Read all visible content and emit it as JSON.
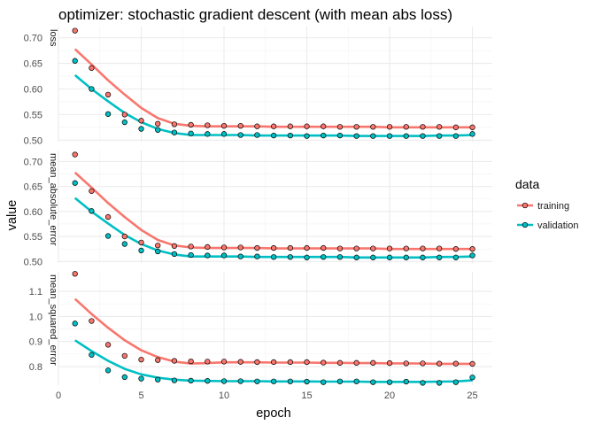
{
  "chart_data": {
    "type": "scatter",
    "title": "optimizer: stochastic gradient descent (with mean abs loss)",
    "xlabel": "epoch",
    "ylabel": "value",
    "xlim": [
      0,
      26.2
    ],
    "xticks": [
      0,
      5,
      10,
      15,
      20,
      25
    ],
    "grid": true,
    "legend": {
      "title": "data",
      "placement": "right",
      "entries": [
        {
          "name": "training",
          "color": "#F8766D"
        },
        {
          "name": "validation",
          "color": "#00BFC4"
        }
      ]
    },
    "point_edge_color": "#000000",
    "facets": [
      {
        "strip_label": "loss",
        "ylim": [
          0.497,
          0.722
        ],
        "yticks": [
          0.5,
          0.55,
          0.6,
          0.65,
          0.7
        ],
        "ytick_labels": [
          "0.50",
          "0.55",
          "0.60",
          "0.65",
          "0.70"
        ],
        "series": [
          {
            "name": "training",
            "color": "#F8766D",
            "x": [
              1,
              2,
              3,
              4,
              5,
              6,
              7,
              8,
              9,
              10,
              11,
              12,
              13,
              14,
              15,
              16,
              17,
              18,
              19,
              20,
              21,
              22,
              23,
              24,
              25
            ],
            "points": [
              0.714,
              0.641,
              0.589,
              0.55,
              0.538,
              0.532,
              0.531,
              0.53,
              0.529,
              0.528,
              0.528,
              0.527,
              0.527,
              0.527,
              0.527,
              0.527,
              0.526,
              0.526,
              0.526,
              0.526,
              0.526,
              0.526,
              0.526,
              0.525,
              0.525
            ],
            "smooth": [
              0.678,
              0.648,
              0.617,
              0.589,
              0.563,
              0.543,
              0.532,
              0.528,
              0.527,
              0.527,
              0.527,
              0.527,
              0.526,
              0.526,
              0.526,
              0.526,
              0.526,
              0.526,
              0.526,
              0.525,
              0.525,
              0.525,
              0.525,
              0.525,
              0.525
            ]
          },
          {
            "name": "validation",
            "color": "#00BFC4",
            "x": [
              1,
              2,
              3,
              4,
              5,
              6,
              7,
              8,
              9,
              10,
              11,
              12,
              13,
              14,
              15,
              16,
              17,
              18,
              19,
              20,
              21,
              22,
              23,
              24,
              25
            ],
            "points": [
              0.655,
              0.6,
              0.551,
              0.535,
              0.522,
              0.52,
              0.515,
              0.513,
              0.512,
              0.512,
              0.51,
              0.51,
              0.509,
              0.509,
              0.508,
              0.509,
              0.509,
              0.508,
              0.508,
              0.508,
              0.508,
              0.508,
              0.508,
              0.508,
              0.512
            ],
            "smooth": [
              0.627,
              0.6,
              0.576,
              0.553,
              0.535,
              0.522,
              0.514,
              0.51,
              0.51,
              0.51,
              0.51,
              0.509,
              0.509,
              0.509,
              0.509,
              0.509,
              0.509,
              0.508,
              0.508,
              0.508,
              0.508,
              0.508,
              0.509,
              0.509,
              0.51
            ]
          }
        ]
      },
      {
        "strip_label": "mean_absolute_error",
        "ylim": [
          0.497,
          0.722
        ],
        "yticks": [
          0.5,
          0.55,
          0.6,
          0.65,
          0.7
        ],
        "ytick_labels": [
          "0.50",
          "0.55",
          "0.60",
          "0.65",
          "0.70"
        ],
        "series": [
          {
            "name": "training",
            "color": "#F8766D",
            "x": [
              1,
              2,
              3,
              4,
              5,
              6,
              7,
              8,
              9,
              10,
              11,
              12,
              13,
              14,
              15,
              16,
              17,
              18,
              19,
              20,
              21,
              22,
              23,
              24,
              25
            ],
            "points": [
              0.714,
              0.641,
              0.589,
              0.55,
              0.538,
              0.532,
              0.531,
              0.53,
              0.529,
              0.528,
              0.528,
              0.527,
              0.527,
              0.527,
              0.527,
              0.527,
              0.526,
              0.526,
              0.526,
              0.526,
              0.526,
              0.526,
              0.526,
              0.525,
              0.525
            ],
            "smooth": [
              0.678,
              0.648,
              0.617,
              0.589,
              0.563,
              0.543,
              0.532,
              0.528,
              0.527,
              0.527,
              0.527,
              0.527,
              0.526,
              0.526,
              0.526,
              0.526,
              0.526,
              0.526,
              0.526,
              0.525,
              0.525,
              0.525,
              0.525,
              0.525,
              0.525
            ]
          },
          {
            "name": "validation",
            "color": "#00BFC4",
            "x": [
              1,
              2,
              3,
              4,
              5,
              6,
              7,
              8,
              9,
              10,
              11,
              12,
              13,
              14,
              15,
              16,
              17,
              18,
              19,
              20,
              21,
              22,
              23,
              24,
              25
            ],
            "points": [
              0.657,
              0.601,
              0.551,
              0.535,
              0.522,
              0.52,
              0.515,
              0.513,
              0.512,
              0.512,
              0.51,
              0.51,
              0.509,
              0.509,
              0.508,
              0.509,
              0.509,
              0.508,
              0.508,
              0.508,
              0.508,
              0.508,
              0.508,
              0.508,
              0.512
            ],
            "smooth": [
              0.627,
              0.6,
              0.576,
              0.553,
              0.535,
              0.522,
              0.514,
              0.51,
              0.51,
              0.51,
              0.51,
              0.509,
              0.509,
              0.509,
              0.509,
              0.509,
              0.509,
              0.508,
              0.508,
              0.508,
              0.508,
              0.508,
              0.509,
              0.509,
              0.51
            ]
          }
        ]
      },
      {
        "strip_label": "mean_squared_error",
        "ylim": [
          0.726,
          1.178
        ],
        "yticks": [
          0.8,
          0.9,
          1.0,
          1.1
        ],
        "ytick_labels": [
          "0.8",
          "0.9",
          "1.0",
          "1.1"
        ],
        "series": [
          {
            "name": "training",
            "color": "#F8766D",
            "x": [
              1,
              2,
              3,
              4,
              5,
              6,
              7,
              8,
              9,
              10,
              11,
              12,
              13,
              14,
              15,
              16,
              17,
              18,
              19,
              20,
              21,
              22,
              23,
              24,
              25
            ],
            "points": [
              1.17,
              0.982,
              0.887,
              0.843,
              0.828,
              0.826,
              0.823,
              0.821,
              0.82,
              0.82,
              0.819,
              0.818,
              0.818,
              0.818,
              0.818,
              0.816,
              0.815,
              0.815,
              0.815,
              0.814,
              0.813,
              0.813,
              0.812,
              0.812,
              0.811
            ],
            "smooth": [
              1.07,
              1.01,
              0.955,
              0.905,
              0.865,
              0.838,
              0.82,
              0.812,
              0.814,
              0.817,
              0.817,
              0.817,
              0.816,
              0.816,
              0.816,
              0.815,
              0.815,
              0.814,
              0.814,
              0.813,
              0.813,
              0.812,
              0.811,
              0.811,
              0.811
            ]
          },
          {
            "name": "validation",
            "color": "#00BFC4",
            "x": [
              1,
              2,
              3,
              4,
              5,
              6,
              7,
              8,
              9,
              10,
              11,
              12,
              13,
              14,
              15,
              16,
              17,
              18,
              19,
              20,
              21,
              22,
              23,
              24,
              25
            ],
            "points": [
              0.972,
              0.847,
              0.785,
              0.758,
              0.752,
              0.748,
              0.745,
              0.744,
              0.743,
              0.742,
              0.742,
              0.741,
              0.741,
              0.741,
              0.74,
              0.738,
              0.741,
              0.741,
              0.738,
              0.738,
              0.74,
              0.735,
              0.735,
              0.738,
              0.757
            ],
            "smooth": [
              0.905,
              0.862,
              0.823,
              0.791,
              0.769,
              0.756,
              0.748,
              0.744,
              0.743,
              0.742,
              0.742,
              0.742,
              0.741,
              0.741,
              0.741,
              0.74,
              0.74,
              0.74,
              0.739,
              0.739,
              0.739,
              0.739,
              0.74,
              0.741,
              0.745
            ]
          }
        ]
      }
    ]
  }
}
